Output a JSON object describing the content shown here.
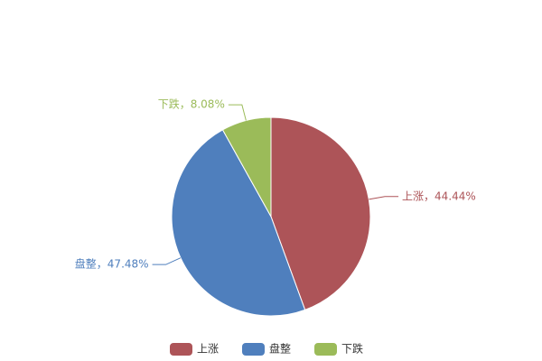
{
  "chart_data": {
    "type": "pie",
    "categories": [
      "上涨",
      "盘整",
      "下跌"
    ],
    "values": [
      44.44,
      47.48,
      8.08
    ],
    "value_labels": [
      "上涨，44.44%",
      "盘整，47.48%",
      "下跌，8.08%"
    ],
    "colors": [
      "#ad5458",
      "#4f7fbd",
      "#9bbb59"
    ],
    "legend": "bottom"
  }
}
